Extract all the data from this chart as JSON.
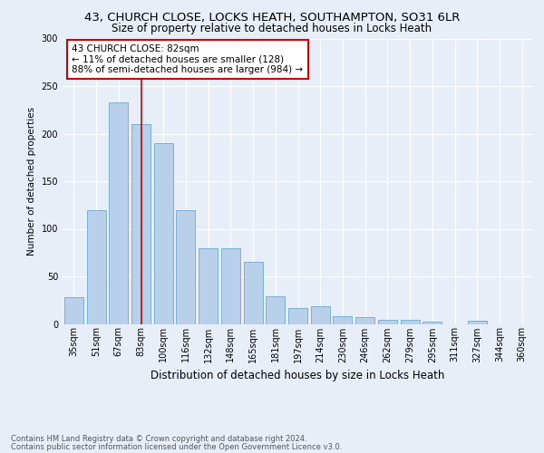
{
  "title1": "43, CHURCH CLOSE, LOCKS HEATH, SOUTHAMPTON, SO31 6LR",
  "title2": "Size of property relative to detached houses in Locks Heath",
  "xlabel": "Distribution of detached houses by size in Locks Heath",
  "ylabel": "Number of detached properties",
  "categories": [
    "35sqm",
    "51sqm",
    "67sqm",
    "83sqm",
    "100sqm",
    "116sqm",
    "132sqm",
    "148sqm",
    "165sqm",
    "181sqm",
    "197sqm",
    "214sqm",
    "230sqm",
    "246sqm",
    "262sqm",
    "279sqm",
    "295sqm",
    "311sqm",
    "327sqm",
    "344sqm",
    "360sqm"
  ],
  "values": [
    28,
    120,
    233,
    210,
    190,
    120,
    80,
    80,
    65,
    29,
    17,
    19,
    8,
    7,
    4,
    4,
    2,
    0,
    3,
    0,
    0
  ],
  "bar_color": "#b8d0ea",
  "bar_edge_color": "#7bafd4",
  "vline_x": 3,
  "vline_color": "#cc0000",
  "annotation_text": "43 CHURCH CLOSE: 82sqm\n← 11% of detached houses are smaller (128)\n88% of semi-detached houses are larger (984) →",
  "annotation_box_color": "#ffffff",
  "annotation_box_edge": "#cc0000",
  "ylim": [
    0,
    300
  ],
  "yticks": [
    0,
    50,
    100,
    150,
    200,
    250,
    300
  ],
  "footer1": "Contains HM Land Registry data © Crown copyright and database right 2024.",
  "footer2": "Contains public sector information licensed under the Open Government Licence v3.0.",
  "bg_color": "#e8eef8",
  "plot_bg_color": "#e8eef8",
  "grid_color": "#ffffff",
  "title1_fontsize": 9.5,
  "title2_fontsize": 8.5,
  "xlabel_fontsize": 8.5,
  "ylabel_fontsize": 7.5,
  "tick_fontsize": 7.0,
  "footer_fontsize": 6.0,
  "annotation_fontsize": 7.5
}
